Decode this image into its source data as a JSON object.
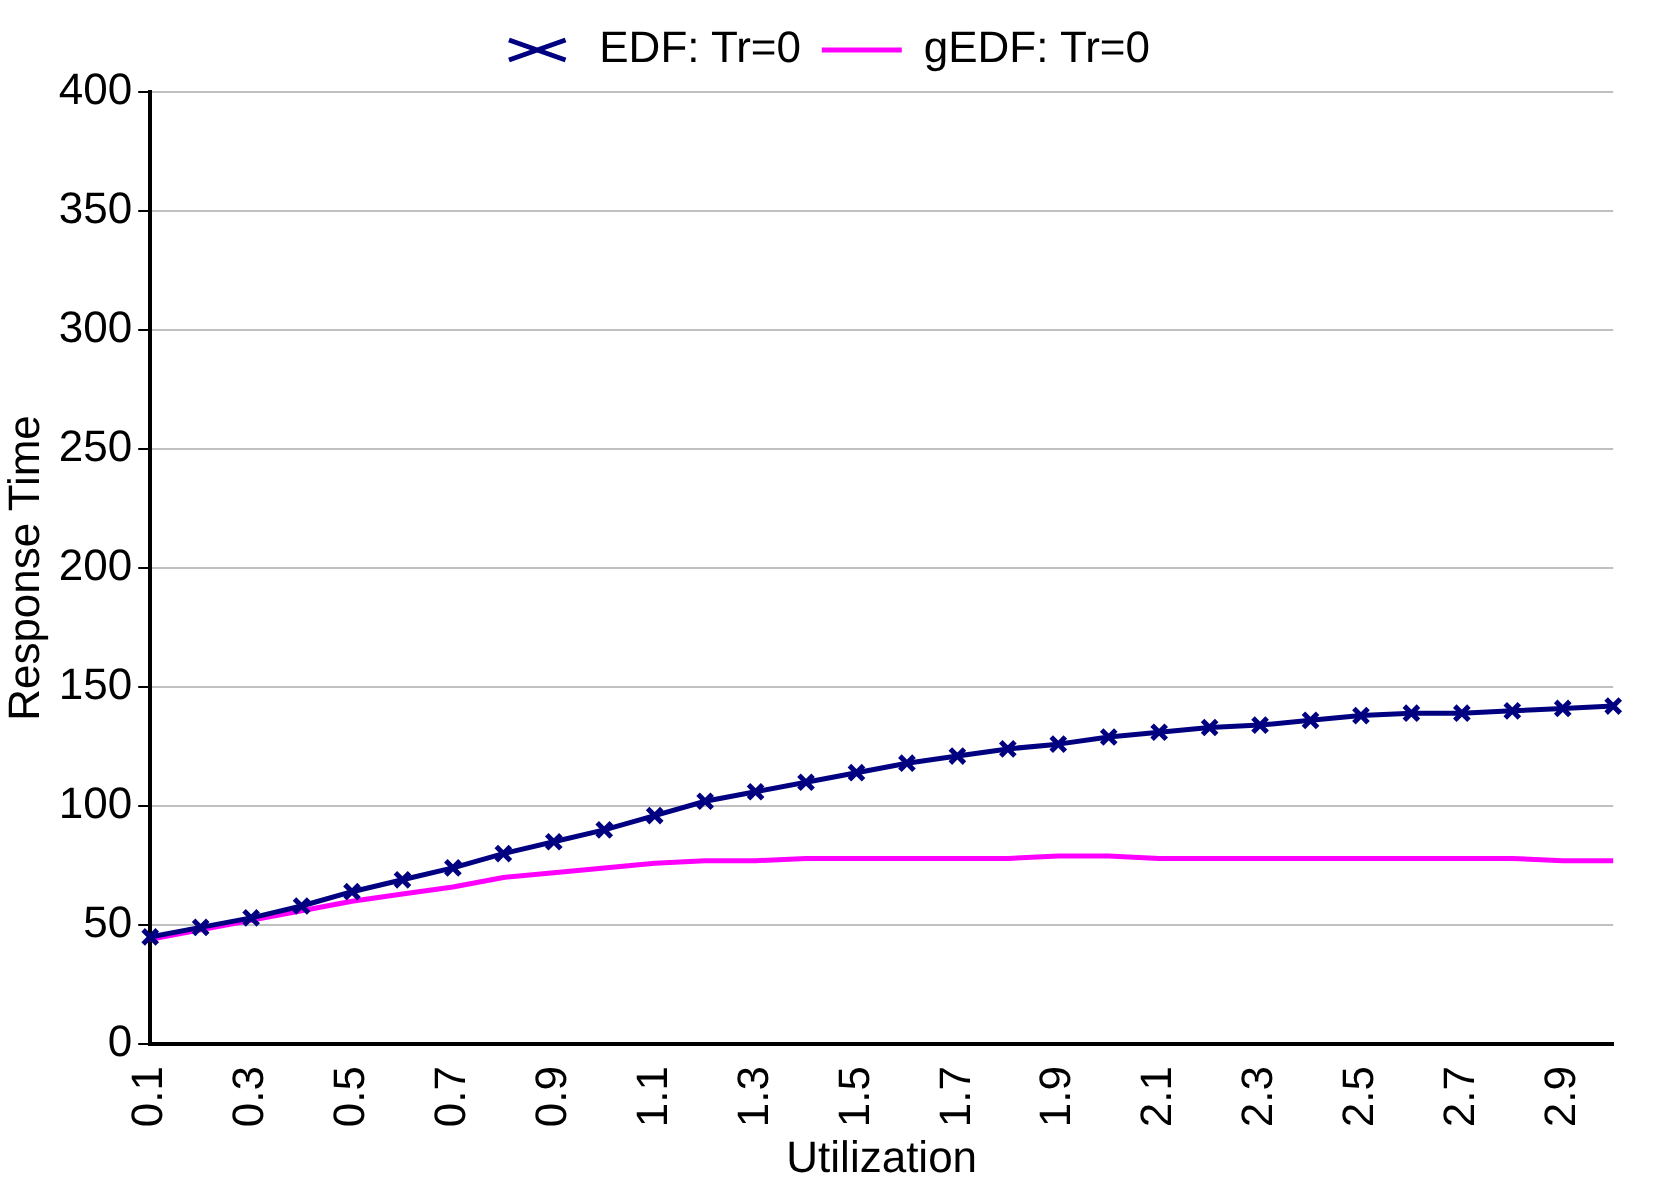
{
  "chart_data": {
    "type": "line",
    "xlabel": "Utilization",
    "ylabel": "Response Time",
    "categories": [
      "0.1",
      null,
      "0.3",
      null,
      "0.5",
      null,
      "0.7",
      null,
      "0.9",
      null,
      "1.1",
      null,
      "1.3",
      null,
      "1.5",
      null,
      "1.7",
      null,
      "1.9",
      null,
      "2.1",
      null,
      "2.3",
      null,
      "2.5",
      null,
      "2.7",
      null,
      "2.9",
      null
    ],
    "series": [
      {
        "name": "EDF: Tr=0",
        "color": "#000080",
        "marker": "cross",
        "values": [
          45,
          49,
          53,
          58,
          64,
          69,
          74,
          80,
          85,
          90,
          96,
          102,
          106,
          110,
          114,
          118,
          121,
          124,
          126,
          129,
          131,
          133,
          134,
          136,
          138,
          139,
          139,
          140,
          141,
          142
        ]
      },
      {
        "name": "gEDF: Tr=0",
        "color": "#ff00ff",
        "marker": "none",
        "values": [
          44,
          48,
          52,
          56,
          60,
          63,
          66,
          70,
          72,
          74,
          76,
          77,
          77,
          78,
          78,
          78,
          78,
          78,
          79,
          79,
          78,
          78,
          78,
          78,
          78,
          78,
          78,
          78,
          77,
          77
        ]
      }
    ],
    "ylim": [
      0,
      400
    ],
    "yticks": [
      0,
      50,
      100,
      150,
      200,
      250,
      300,
      350,
      400
    ],
    "grid": "y",
    "legend": "top"
  }
}
